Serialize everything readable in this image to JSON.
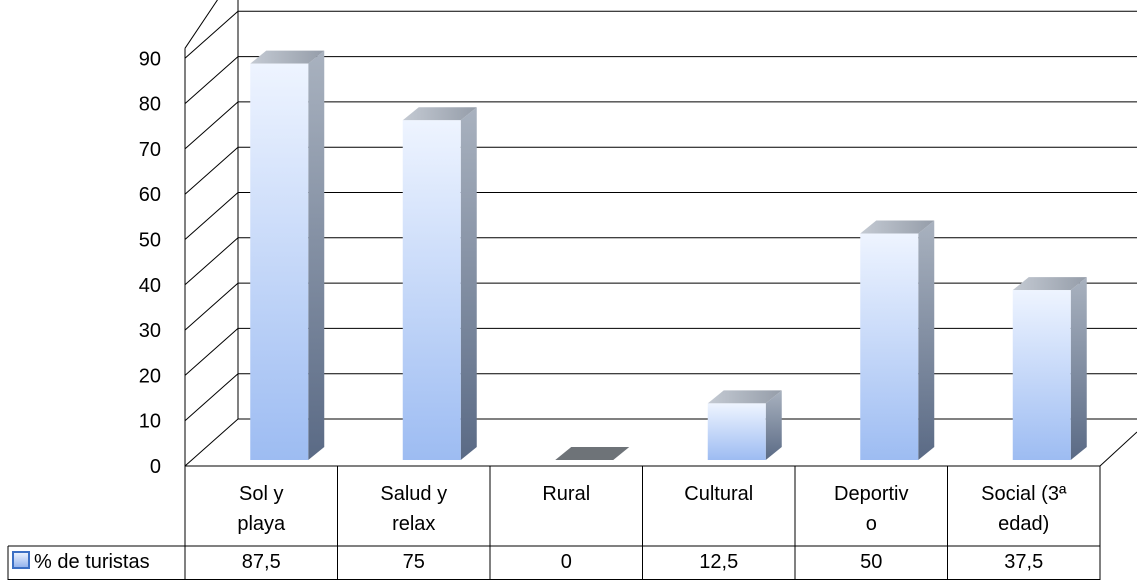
{
  "chart_data": {
    "type": "bar",
    "title": "",
    "xlabel": "",
    "ylabel": "",
    "ylim": [
      0,
      90
    ],
    "yticks": [
      "0",
      "10",
      "20",
      "30",
      "40",
      "50",
      "60",
      "70",
      "80",
      "90"
    ],
    "grid": true,
    "categories": [
      "Sol y playa",
      "Salud y relax",
      "Rural",
      "Cultural",
      "Deportivo",
      "Social (3ª edad)"
    ],
    "category_label_lines": [
      [
        "Sol y",
        "playa"
      ],
      [
        "Salud y",
        "relax"
      ],
      [
        "Rural"
      ],
      [
        "Cultural"
      ],
      [
        "Deportiv",
        "o"
      ],
      [
        "Social (3ª",
        "edad)"
      ]
    ],
    "series": [
      {
        "name": "% de turistas",
        "values": [
          87.5,
          75,
          0,
          12.5,
          50,
          37.5
        ]
      }
    ],
    "data_table_values": [
      "87,5",
      "75",
      "0",
      "12,5",
      "50",
      "37,5"
    ],
    "legend": "data-table",
    "colors": {
      "bar_front_top": "#eef4ff",
      "bar_front_bottom": "#9dbcf2",
      "bar_side_top": "#a9b2bf",
      "bar_side_bottom": "#5a6a85",
      "bar_top": "#a4abb5",
      "zero_bar": "#6e7378",
      "grid": "#000000"
    }
  }
}
